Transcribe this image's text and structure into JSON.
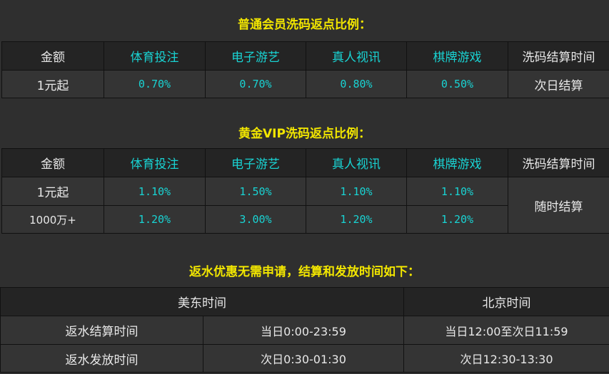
{
  "section1": {
    "title": "普通会员洗码返点比例：",
    "headers": [
      "金额",
      "体育投注",
      "电子游艺",
      "真人视讯",
      "棋牌游戏",
      "洗码结算时间"
    ],
    "rows": [
      [
        "1元起",
        "0.70%",
        "0.70%",
        "0.80%",
        "0.50%",
        "次日结算"
      ]
    ]
  },
  "section2": {
    "title": "黄金VIP洗码返点比例：",
    "headers": [
      "金额",
      "体育投注",
      "电子游艺",
      "真人视讯",
      "棋牌游戏",
      "洗码结算时间"
    ],
    "rows": [
      [
        "1元起",
        "1.10%",
        "1.50%",
        "1.10%",
        "1.10%"
      ],
      [
        "1000万+",
        "1.20%",
        "3.00%",
        "1.20%",
        "1.20%"
      ]
    ],
    "settlement": "随时结算"
  },
  "section3": {
    "title": "返水优惠无需申请，结算和发放时间如下：",
    "headers": [
      "美东时间",
      "北京时间"
    ],
    "rows": [
      [
        "返水结算时间",
        "当日0:00-23:59",
        "当日12:00至次日11:59"
      ],
      [
        "返水发放时间",
        "次日0:30-01:30",
        "次日12:30-13:30"
      ]
    ]
  },
  "colors": {
    "title": "#f2e600",
    "accent": "#19d3d3"
  }
}
